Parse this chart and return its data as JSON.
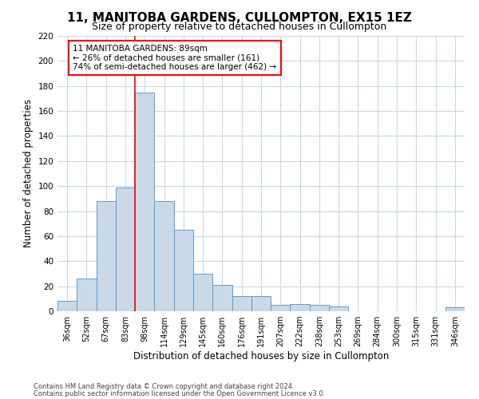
{
  "title": "11, MANITOBA GARDENS, CULLOMPTON, EX15 1EZ",
  "subtitle": "Size of property relative to detached houses in Cullompton",
  "xlabel": "Distribution of detached houses by size in Cullompton",
  "ylabel": "Number of detached properties",
  "bin_labels": [
    "36sqm",
    "52sqm",
    "67sqm",
    "83sqm",
    "98sqm",
    "114sqm",
    "129sqm",
    "145sqm",
    "160sqm",
    "176sqm",
    "191sqm",
    "207sqm",
    "222sqm",
    "238sqm",
    "253sqm",
    "269sqm",
    "284sqm",
    "300sqm",
    "315sqm",
    "331sqm",
    "346sqm"
  ],
  "bar_values": [
    8,
    26,
    88,
    99,
    175,
    88,
    65,
    30,
    21,
    12,
    12,
    5,
    6,
    5,
    4,
    0,
    0,
    0,
    0,
    0,
    3
  ],
  "bar_color": "#c9d9e8",
  "bar_edgecolor": "#5b9bd5",
  "ylim": [
    0,
    220
  ],
  "yticks": [
    0,
    20,
    40,
    60,
    80,
    100,
    120,
    140,
    160,
    180,
    200,
    220
  ],
  "vline_x": 3.5,
  "annotation_text_line1": "11 MANITOBA GARDENS: 89sqm",
  "annotation_text_line2": "← 26% of detached houses are smaller (161)",
  "annotation_text_line3": "74% of semi-detached houses are larger (462) →",
  "footnote1": "Contains HM Land Registry data © Crown copyright and database right 2024.",
  "footnote2": "Contains public sector information licensed under the Open Government Licence v3.0.",
  "bg_color": "#ffffff",
  "grid_color": "#c8d8e8",
  "title_fontsize": 11,
  "subtitle_fontsize": 9,
  "tick_fontsize": 7,
  "ylabel_fontsize": 8.5,
  "xlabel_fontsize": 8.5,
  "footnote_fontsize": 6,
  "annotation_fontsize": 7.5
}
